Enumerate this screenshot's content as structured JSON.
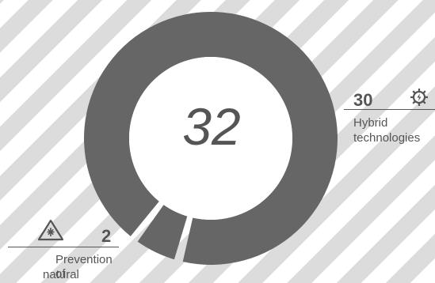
{
  "chart_data": {
    "type": "pie",
    "total": "32",
    "categories": [
      "Hybrid technologies",
      "Prevention of natural disasters"
    ],
    "values": [
      30,
      2
    ],
    "value_labels": [
      "30",
      "2"
    ],
    "colors": {
      "slice": "#666666",
      "text": "#555555",
      "stripe": "#dcdcdc"
    },
    "icons": [
      "gear-bolt-icon",
      "warning-triangle-icon"
    ],
    "labels": {
      "hybrid": {
        "value": "30",
        "caption_line1": "Hybrid",
        "caption_line2": "technologies"
      },
      "prevention": {
        "value": "2",
        "caption_line1": "Prevention of",
        "caption_line2": "natural disasters"
      }
    }
  }
}
